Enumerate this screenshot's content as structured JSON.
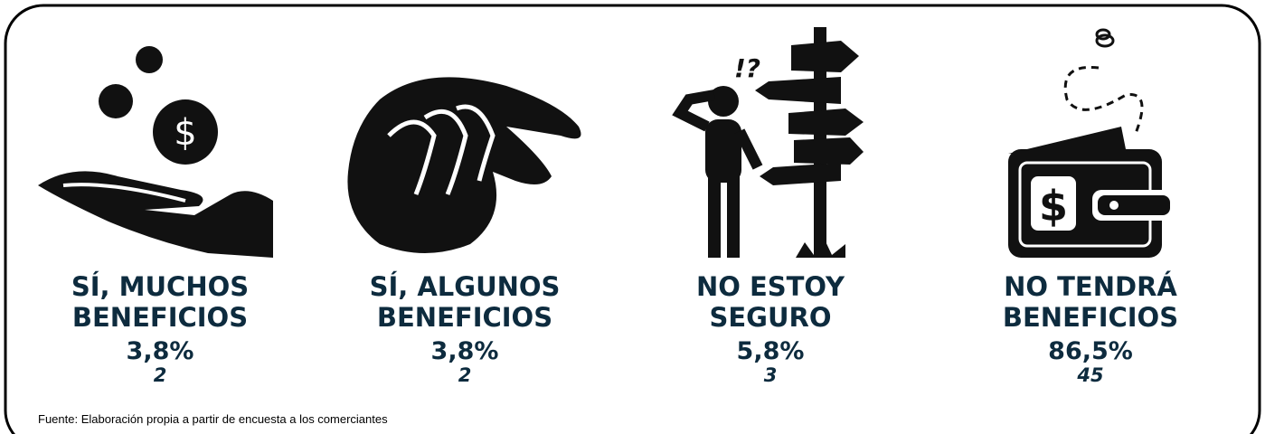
{
  "items": [
    {
      "label": [
        "SÍ, MUCHOS",
        "BENEFICIOS"
      ],
      "percent": "3,8%",
      "count": 2
    },
    {
      "label": [
        "SÍ, ALGUNOS",
        "BENEFICIOS"
      ],
      "percent": "3,8%",
      "count": 2
    },
    {
      "label": [
        "NO ESTOY",
        "SEGURO"
      ],
      "percent": "5,8%",
      "count": 3
    },
    {
      "label": [
        "NO TENDRÁ",
        "BENEFICIOS"
      ],
      "percent": "86,5%",
      "count": 45
    }
  ],
  "icon_text": "!?",
  "source": "Fuente: Elaboración propia a partir de encuesta a los comerciantes"
}
